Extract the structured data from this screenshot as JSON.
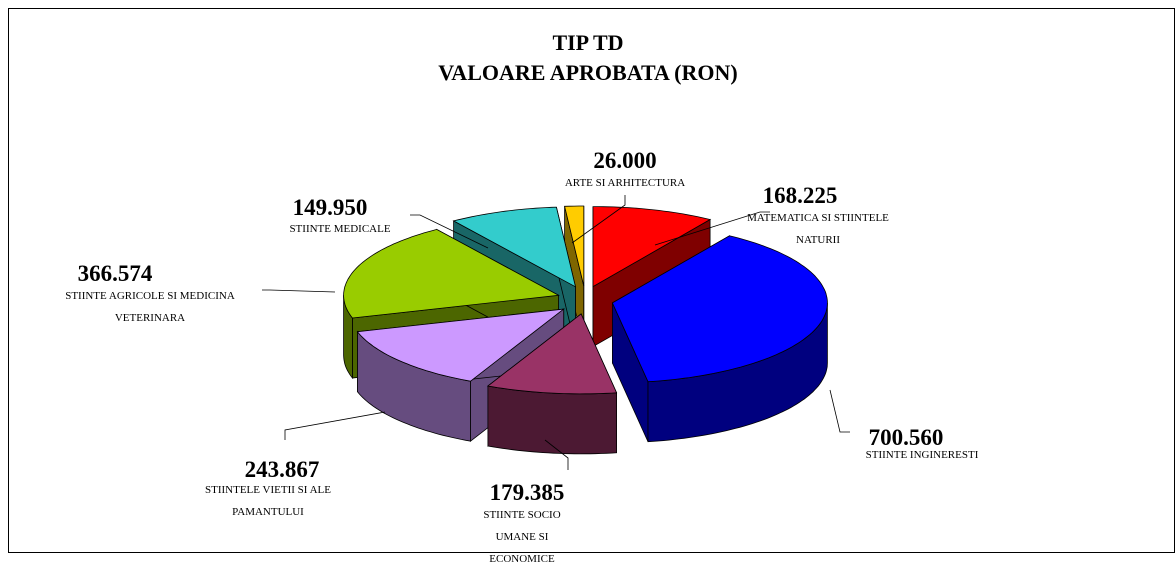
{
  "chart_data": {
    "type": "pie3d",
    "title": "TIP TD",
    "subtitle": "VALOARE APROBATA (RON)",
    "categories": [
      "MATEMATICA SI STIINTELE NATURII",
      "STIINTE INGINERESTI",
      "STIINTE SOCIO UMANE SI ECONOMICE",
      "STIINTELE VIETII SI ALE PAMANTULUI",
      "STIINTE AGRICOLE SI MEDICINA VETERINARA",
      "STIINTE MEDICALE",
      "ARTE SI ARHITECTURA"
    ],
    "values": [
      168225,
      700560,
      179385,
      243867,
      366574,
      149950,
      26000
    ],
    "value_labels": [
      "168.225",
      "700.560",
      "179.385",
      "243.867",
      "366.574",
      "149.950",
      "26.000"
    ],
    "colors": [
      "#ff0000",
      "#0000ff",
      "#993366",
      "#cc99ff",
      "#99cc00",
      "#33cccc",
      "#ffcc00"
    ]
  }
}
